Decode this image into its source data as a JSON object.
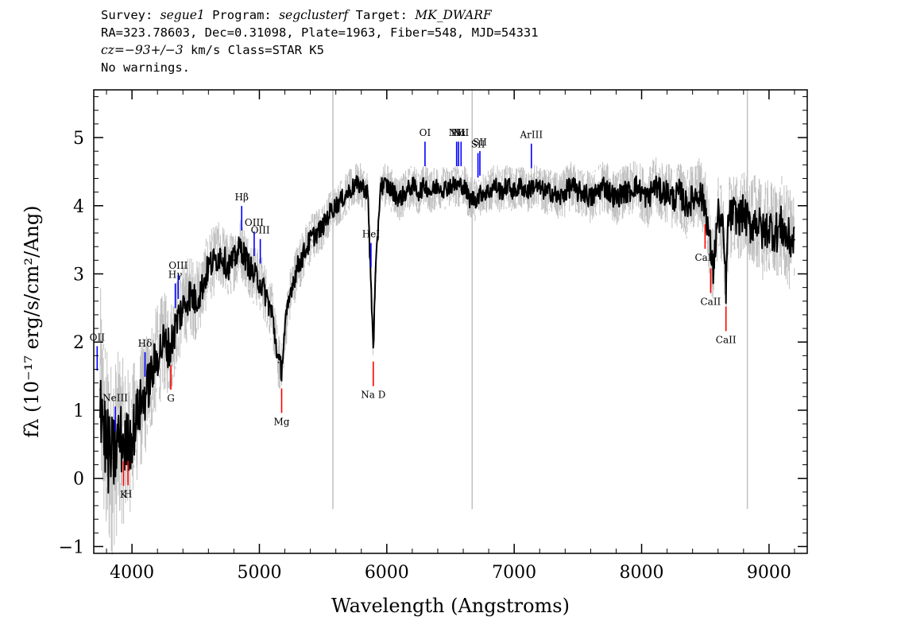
{
  "header": {
    "survey_label": "Survey:",
    "survey": "segue1",
    "program_label": "Program:",
    "program": "segclusterf",
    "target_label": "Target:",
    "target": "MK_DWARF",
    "line2": "RA=323.78603, Dec=0.31098, Plate=1963, Fiber=548, MJD=54331",
    "cz_label": "cz=",
    "cz_value": "−93+/−3",
    "cz_rest": " km/s Class=STAR K5",
    "line4": "No warnings."
  },
  "chart_data": {
    "type": "line",
    "xlabel": "Wavelength (Angstroms)",
    "ylabel": "fλ (10⁻¹⁷ erg/s/cm²/Ang)",
    "xlim": [
      3700,
      9300
    ],
    "ylim": [
      -1.1,
      5.7
    ],
    "xticks": [
      4000,
      5000,
      6000,
      7000,
      8000,
      9000
    ],
    "xtick_labels": [
      "4000",
      "5000",
      "6000",
      "7000",
      "8000",
      "9000"
    ],
    "yticks": [
      -1,
      0,
      1,
      2,
      3,
      4,
      5
    ],
    "ytick_labels": [
      "−1",
      "0",
      "1",
      "2",
      "3",
      "4",
      "5"
    ],
    "colors": {
      "flux": "#000000",
      "error": "#c0c0c0",
      "emission": "#0000ff",
      "absorption": "#ff0000"
    },
    "series": [
      {
        "name": "flux",
        "x": [
          3750,
          3800,
          3850,
          3900,
          3950,
          4000,
          4050,
          4100,
          4150,
          4200,
          4250,
          4300,
          4350,
          4400,
          4450,
          4500,
          4550,
          4600,
          4650,
          4700,
          4750,
          4800,
          4850,
          4900,
          4950,
          5000,
          5050,
          5100,
          5150,
          5175,
          5200,
          5250,
          5300,
          5350,
          5400,
          5450,
          5500,
          5550,
          5600,
          5650,
          5700,
          5750,
          5800,
          5850,
          5880,
          5895,
          5910,
          5950,
          6000,
          6050,
          6100,
          6150,
          6200,
          6250,
          6300,
          6350,
          6400,
          6450,
          6500,
          6550,
          6600,
          6650,
          6700,
          6750,
          6800,
          6850,
          6900,
          6950,
          7000,
          7050,
          7100,
          7150,
          7200,
          7250,
          7300,
          7350,
          7400,
          7450,
          7500,
          7550,
          7600,
          7650,
          7700,
          7750,
          7800,
          7850,
          7900,
          7950,
          8000,
          8050,
          8100,
          8150,
          8200,
          8250,
          8300,
          8350,
          8400,
          8450,
          8500,
          8540,
          8560,
          8600,
          8640,
          8662,
          8680,
          8720,
          8760,
          8800,
          8850,
          8900,
          8950,
          9000,
          9050,
          9100,
          9150,
          9200
        ],
        "y": [
          1.3,
          0.4,
          0.3,
          0.6,
          0.5,
          0.6,
          1.0,
          1.2,
          1.5,
          1.8,
          2.0,
          1.9,
          2.3,
          2.5,
          2.7,
          2.6,
          2.8,
          3.1,
          3.2,
          3.3,
          3.1,
          3.2,
          3.4,
          3.2,
          3.0,
          2.9,
          2.7,
          2.4,
          1.7,
          1.6,
          2.2,
          2.8,
          3.1,
          3.3,
          3.5,
          3.6,
          3.7,
          3.9,
          4.0,
          4.1,
          4.2,
          4.3,
          4.3,
          4.2,
          2.6,
          1.95,
          2.9,
          4.3,
          4.3,
          4.2,
          4.1,
          4.2,
          4.3,
          4.2,
          4.3,
          4.2,
          4.3,
          4.25,
          4.3,
          4.3,
          4.3,
          4.1,
          4.1,
          4.2,
          4.2,
          4.3,
          4.2,
          4.3,
          4.2,
          4.3,
          4.2,
          4.3,
          4.25,
          4.2,
          4.2,
          4.1,
          4.2,
          4.3,
          4.2,
          4.2,
          4.1,
          4.2,
          4.3,
          4.2,
          4.1,
          4.2,
          4.2,
          4.3,
          4.2,
          4.1,
          4.3,
          4.2,
          4.2,
          4.1,
          4.2,
          4.0,
          4.1,
          4.2,
          4.0,
          3.4,
          3.0,
          3.9,
          3.6,
          2.8,
          3.8,
          3.9,
          3.8,
          3.9,
          3.7,
          3.8,
          3.6,
          3.7,
          3.6,
          3.7,
          3.5,
          3.5
        ]
      },
      {
        "name": "error",
        "x": [
          3750,
          3800,
          3850,
          3900,
          3950,
          4000,
          4100,
          4200,
          4300,
          4400,
          4500,
          4600,
          4700,
          4800,
          4900,
          5000,
          5100,
          5200,
          5300,
          5400,
          5500,
          5600,
          5700,
          5800,
          5900,
          6000,
          6200,
          6400,
          6600,
          6800,
          7000,
          7200,
          7400,
          7600,
          7800,
          8000,
          8200,
          8400,
          8600,
          8800,
          9000,
          9200
        ],
        "spread": [
          1.2,
          1.2,
          1.1,
          1.0,
          0.9,
          0.8,
          0.7,
          0.6,
          0.55,
          0.5,
          0.45,
          0.4,
          0.4,
          0.35,
          0.35,
          0.35,
          0.35,
          0.3,
          0.3,
          0.3,
          0.25,
          0.25,
          0.25,
          0.25,
          0.25,
          0.25,
          0.25,
          0.25,
          0.25,
          0.25,
          0.25,
          0.25,
          0.28,
          0.3,
          0.3,
          0.32,
          0.35,
          0.4,
          0.45,
          0.5,
          0.55,
          0.6
        ]
      }
    ],
    "sky_lines": [
      5577,
      6670,
      8830
    ],
    "emission_lines": [
      {
        "label": "OII",
        "x": 3727
      },
      {
        "label": "NeIII",
        "x": 3869
      },
      {
        "label": "Hδ",
        "x": 4102
      },
      {
        "label": "Hγ",
        "x": 4340
      },
      {
        "label": "OIII",
        "x": 4363
      },
      {
        "label": "Hβ",
        "x": 4861
      },
      {
        "label": "OIII",
        "x": 4959
      },
      {
        "label": "OIII",
        "x": 5007
      },
      {
        "label": "HeI",
        "x": 5876
      },
      {
        "label": "OI",
        "x": 6300
      },
      {
        "label": "NII",
        "x": 6548
      },
      {
        "label": "Hα",
        "x": 6563
      },
      {
        "label": "NII",
        "x": 6583
      },
      {
        "label": "SII",
        "x": 6716
      },
      {
        "label": "SII",
        "x": 6731
      },
      {
        "label": "ArIII",
        "x": 7135
      }
    ],
    "absorption_lines": [
      {
        "label": "K",
        "x": 3934
      },
      {
        "label": "H",
        "x": 3969
      },
      {
        "label": "G",
        "x": 4305
      },
      {
        "label": "Mg",
        "x": 5175
      },
      {
        "label": "Na D",
        "x": 5894
      },
      {
        "label": "CaII",
        "x": 8498
      },
      {
        "label": "CaII",
        "x": 8542
      },
      {
        "label": "CaII",
        "x": 8662
      }
    ]
  }
}
